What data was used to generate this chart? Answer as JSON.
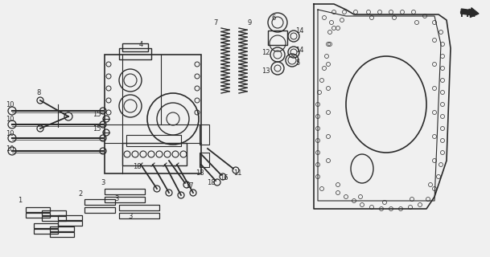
{
  "bg_color": "#f0f0f0",
  "line_color": "#2a2a2a",
  "fig_width": 6.09,
  "fig_height": 3.2,
  "dpi": 100,
  "xlim": [
    0,
    609
  ],
  "ylim": [
    0,
    320
  ]
}
